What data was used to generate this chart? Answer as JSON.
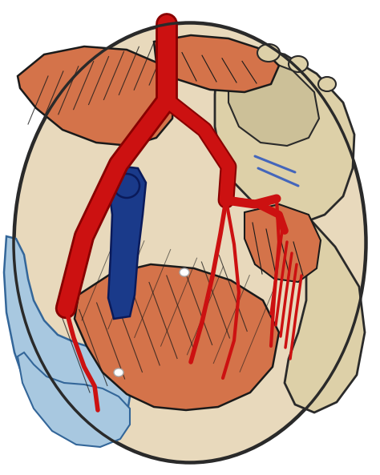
{
  "bg_color": "#ffffff",
  "outer_oval_color": "#e8d9bc",
  "outer_oval_edge": "#2a2a2a",
  "muscle_color": "#d4734a",
  "muscle_color2": "#c96040",
  "muscle_edge": "#1a1a1a",
  "muscle_line_color": "#1a1a1a",
  "bone_color": "#ddd0a8",
  "bone_color2": "#ccc098",
  "bone_edge": "#2a2a2a",
  "artery_color": "#cc1111",
  "artery_dark": "#880000",
  "vein_color": "#1a3a8a",
  "vein_dark": "#0a1a5a",
  "bladder_color": "#a8c8e0",
  "bladder_color2": "#7aadcc",
  "bladder_edge": "#336699",
  "figsize": [
    4.74,
    5.93
  ],
  "dpi": 100
}
